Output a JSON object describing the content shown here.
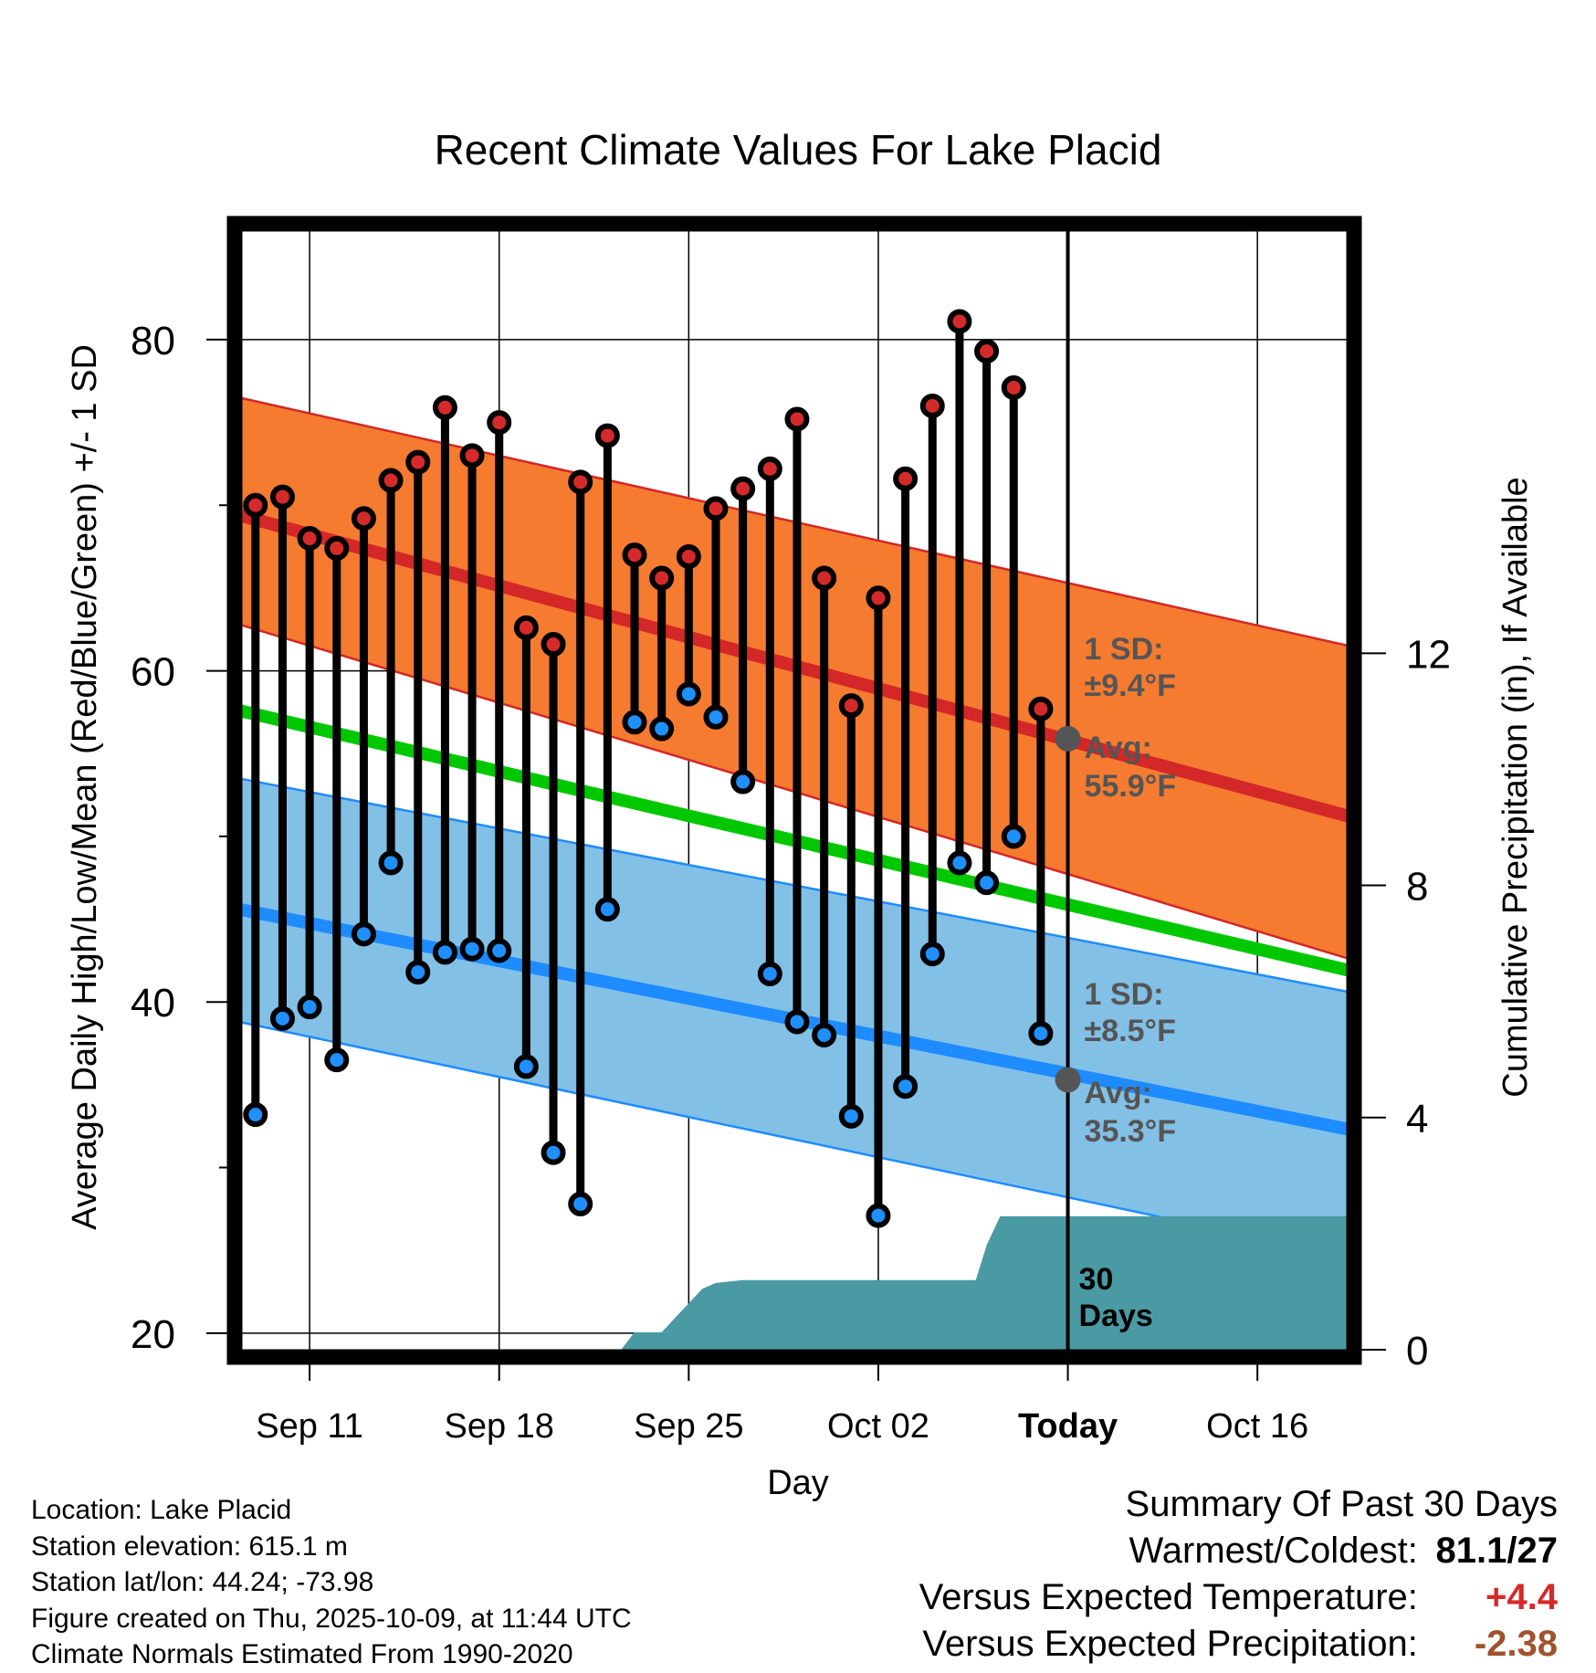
{
  "chart_data": {
    "type": "line",
    "title": "Recent Climate Values For Lake Placid",
    "xlabel": "Day",
    "ylabel": "Average Daily High/Low/Mean (Red/Blue/Green) +/- 1 SD",
    "y2label": "Cumulative Precipitation (in), If Available",
    "ylim": [
      19,
      87
    ],
    "y2lim": [
      0,
      19.4
    ],
    "xlim": [
      -2.6,
      38.4
    ],
    "grid": true,
    "x_ticks": [
      {
        "day": 0,
        "label": "Sep 11"
      },
      {
        "day": 7,
        "label": "Sep 18"
      },
      {
        "day": 14,
        "label": "Sep 25"
      },
      {
        "day": 21,
        "label": "Oct 02"
      },
      {
        "day": 28,
        "label": "Today"
      },
      {
        "day": 35,
        "label": "Oct 16"
      }
    ],
    "y_ticks": [
      20,
      40,
      60,
      80
    ],
    "y_minor_ticks": [
      30,
      50,
      70
    ],
    "y2_ticks": [
      0,
      4,
      8,
      12
    ],
    "normals": {
      "x": [
        -2.6,
        38.4
      ],
      "high_avg": [
        69.4,
        51.2
      ],
      "high_sd_upper": [
        76.5,
        61.5
      ],
      "high_sd_lower": [
        62.8,
        42.6
      ],
      "mean_avg": [
        57.6,
        41.9
      ],
      "low_avg": [
        45.6,
        32.3
      ],
      "low_sd_upper": [
        53.5,
        40.6
      ],
      "low_sd_lower": [
        38.8,
        24.6
      ]
    },
    "series": [
      {
        "name": "Daily High",
        "x": [
          -2,
          -1,
          0,
          1,
          2,
          3,
          4,
          5,
          6,
          7,
          8,
          9,
          10,
          11,
          12,
          13,
          14,
          15,
          16,
          17,
          18,
          19,
          20,
          21,
          22,
          23,
          24,
          25,
          26,
          27
        ],
        "values": [
          70.0,
          70.5,
          68.0,
          67.4,
          69.2,
          71.5,
          72.6,
          75.9,
          73.0,
          75.0,
          62.6,
          61.6,
          71.4,
          74.2,
          67.0,
          65.6,
          66.9,
          69.8,
          71.0,
          72.2,
          75.2,
          65.6,
          57.9,
          64.4,
          71.6,
          76.0,
          81.1,
          79.3,
          77.1,
          57.7
        ]
      },
      {
        "name": "Daily Low",
        "x": [
          -2,
          -1,
          0,
          1,
          2,
          3,
          4,
          5,
          6,
          7,
          8,
          9,
          10,
          11,
          12,
          13,
          14,
          15,
          16,
          17,
          18,
          19,
          20,
          21,
          22,
          23,
          24,
          25,
          26,
          27
        ],
        "values": [
          33.2,
          39.0,
          39.7,
          36.5,
          44.1,
          48.4,
          41.8,
          43.0,
          43.2,
          43.1,
          36.1,
          30.9,
          27.8,
          45.6,
          56.9,
          56.5,
          58.6,
          57.2,
          53.3,
          41.7,
          38.8,
          38.0,
          33.1,
          27.1,
          34.9,
          42.9,
          48.4,
          47.2,
          50.0,
          38.1
        ]
      },
      {
        "name": "Cumulative Precipitation",
        "axis": "y2",
        "x": [
          11.5,
          12.0,
          13.0,
          13.5,
          14.0,
          14.5,
          15.0,
          16.0,
          17.0,
          18.0,
          19.0,
          20.0,
          21.0,
          22.0,
          23.0,
          24.0,
          24.6,
          25.0,
          25.5,
          26.0,
          27.0,
          28.0,
          29.0,
          38.4
        ],
        "values": [
          0.0,
          0.3,
          0.3,
          0.55,
          0.8,
          1.05,
          1.15,
          1.2,
          1.2,
          1.2,
          1.2,
          1.2,
          1.2,
          1.2,
          1.2,
          1.2,
          1.2,
          1.8,
          2.3,
          2.3,
          2.3,
          2.3,
          2.3,
          2.3
        ]
      }
    ],
    "annotations": {
      "high_sd_label": "1 SD:",
      "high_sd_value": "±9.4°F",
      "high_avg_label": "Avg:",
      "high_avg_value": "55.9°F",
      "high_avg_point": 55.9,
      "low_sd_label": "1 SD:",
      "low_sd_value": "±8.5°F",
      "low_avg_label": "Avg:",
      "low_avg_value": "35.3°F",
      "low_avg_point": 35.3,
      "period_label_1": "30",
      "period_label_2": "Days",
      "today_day": 28
    },
    "colors": {
      "high_band": "#f47b2f",
      "high_line": "#d42727",
      "mean_line": "#00c800",
      "low_band": "#82c0e6",
      "low_line": "#1e8cff",
      "precip": "#4a9aa3",
      "high_marker": "#d42a2a",
      "low_marker": "#1e90ff",
      "annotation": "#555555"
    }
  },
  "info": {
    "location": "Location: Lake Placid",
    "elevation": "Station elevation: 615.1 m",
    "latlon": "Station lat/lon: 44.24; -73.98",
    "created": "Figure created on Thu, 2025-10-09, at 11:44 UTC",
    "normals": "Climate Normals Estimated From 1990-2020"
  },
  "summary": {
    "header": "Summary Of Past 30 Days",
    "warmest_label": "Warmest/Coldest:",
    "warmest_value": "81.1/27",
    "temp_label": "Versus Expected Temperature:",
    "temp_value": "+4.4",
    "temp_color": "#d42a2a",
    "precip_label": "Versus Expected Precipitation:",
    "precip_value": "-2.38",
    "precip_color": "#a0522d"
  }
}
